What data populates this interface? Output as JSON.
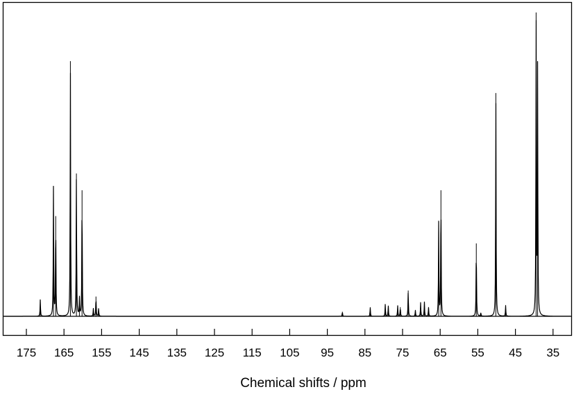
{
  "chart_data": {
    "type": "line",
    "title": "",
    "xlabel": "Chemical shifts / ppm",
    "ylabel": "",
    "x_reversed": true,
    "xlim": [
      179,
      32
    ],
    "ylim": [
      0,
      1
    ],
    "grid": false,
    "legend": "none",
    "xticks": [
      175,
      165,
      155,
      145,
      135,
      125,
      115,
      105,
      95,
      85,
      75,
      65,
      55,
      45,
      35
    ],
    "xtick_labels": [
      "175",
      "165",
      "155",
      "145",
      "135",
      "125",
      "115",
      "105",
      "95",
      "85",
      "75",
      "65",
      "55",
      "45",
      "35"
    ],
    "line_color": "#000000",
    "peaks": [
      {
        "x": 171.3,
        "y": 0.055
      },
      {
        "x": 167.8,
        "y": 0.425
      },
      {
        "x": 167.2,
        "y": 0.33
      },
      {
        "x": 163.3,
        "y": 0.84
      },
      {
        "x": 161.7,
        "y": 0.47
      },
      {
        "x": 160.9,
        "y": 0.06
      },
      {
        "x": 160.2,
        "y": 0.415
      },
      {
        "x": 157.2,
        "y": 0.025
      },
      {
        "x": 156.5,
        "y": 0.065
      },
      {
        "x": 155.8,
        "y": 0.025
      },
      {
        "x": 91.0,
        "y": 0.015
      },
      {
        "x": 83.6,
        "y": 0.03
      },
      {
        "x": 79.6,
        "y": 0.04
      },
      {
        "x": 78.8,
        "y": 0.035
      },
      {
        "x": 76.3,
        "y": 0.035
      },
      {
        "x": 75.6,
        "y": 0.03
      },
      {
        "x": 73.5,
        "y": 0.085
      },
      {
        "x": 71.6,
        "y": 0.02
      },
      {
        "x": 70.2,
        "y": 0.045
      },
      {
        "x": 69.2,
        "y": 0.048
      },
      {
        "x": 68.1,
        "y": 0.03
      },
      {
        "x": 65.4,
        "y": 0.31
      },
      {
        "x": 64.8,
        "y": 0.415
      },
      {
        "x": 55.4,
        "y": 0.24
      },
      {
        "x": 54.2,
        "y": 0.012
      },
      {
        "x": 50.2,
        "y": 0.735
      },
      {
        "x": 47.6,
        "y": 0.035
      },
      {
        "x": 39.5,
        "y": 1.0
      },
      {
        "x": 39.1,
        "y": 0.84
      }
    ]
  }
}
